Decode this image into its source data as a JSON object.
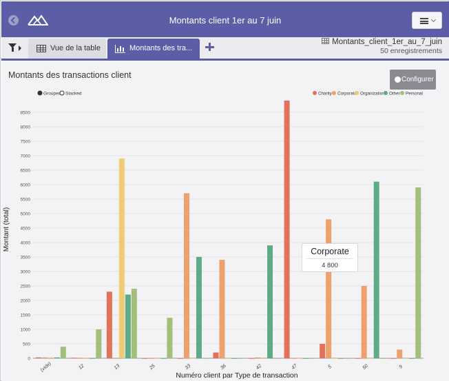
{
  "app": {
    "title": "Montants client 1er au 7 juin"
  },
  "tabs": [
    {
      "label": "Vue de la table",
      "active": false
    },
    {
      "label": "Montants des tra...",
      "active": true
    }
  ],
  "dataset": {
    "name": "Montants_client_1er_au_7_juin",
    "count_label": "50 enregistrements"
  },
  "panel": {
    "title": "Montants des transactions client",
    "configure_label": "Configurer"
  },
  "mode_toggle": {
    "options": [
      "Grouped",
      "Stacked"
    ],
    "selected": "Grouped"
  },
  "tooltip": {
    "series": "Corporate",
    "value": "4 800"
  },
  "colors": {
    "header": "#5b5ea6",
    "Charity": "#e4725a",
    "Corporate": "#eea16c",
    "Organization": "#efcb73",
    "Other": "#5fab87",
    "Personal": "#a2bf7c"
  },
  "chart_data": {
    "type": "bar",
    "mode": "grouped",
    "xlabel": "Numéro client par Type de transaction",
    "ylabel": "Montant (total)",
    "ylim": [
      0,
      8900
    ],
    "yticks": [
      0,
      500,
      1000,
      1500,
      2000,
      2500,
      3000,
      3500,
      4000,
      4500,
      5000,
      5500,
      6000,
      6500,
      7000,
      7500,
      8000,
      8500
    ],
    "legend_position": "top-right",
    "grid": true,
    "categories": [
      "(vide)",
      "12",
      "13",
      "25",
      "33",
      "36",
      "42",
      "47",
      "5",
      "50",
      "9"
    ],
    "series": [
      {
        "name": "Charity",
        "values": [
          30,
          20,
          2300,
          0,
          0,
          200,
          0,
          8900,
          500,
          0,
          0
        ]
      },
      {
        "name": "Corporate",
        "values": [
          30,
          20,
          0,
          0,
          5700,
          3400,
          30,
          0,
          4800,
          2500,
          300
        ]
      },
      {
        "name": "Organization",
        "values": [
          30,
          20,
          6900,
          0,
          0,
          0,
          30,
          0,
          0,
          0,
          0
        ]
      },
      {
        "name": "Other",
        "values": [
          30,
          0,
          2200,
          0,
          3500,
          0,
          3900,
          0,
          0,
          6100,
          0
        ]
      },
      {
        "name": "Personal",
        "values": [
          400,
          1000,
          2400,
          1400,
          0,
          0,
          0,
          0,
          0,
          0,
          5900
        ]
      }
    ]
  }
}
